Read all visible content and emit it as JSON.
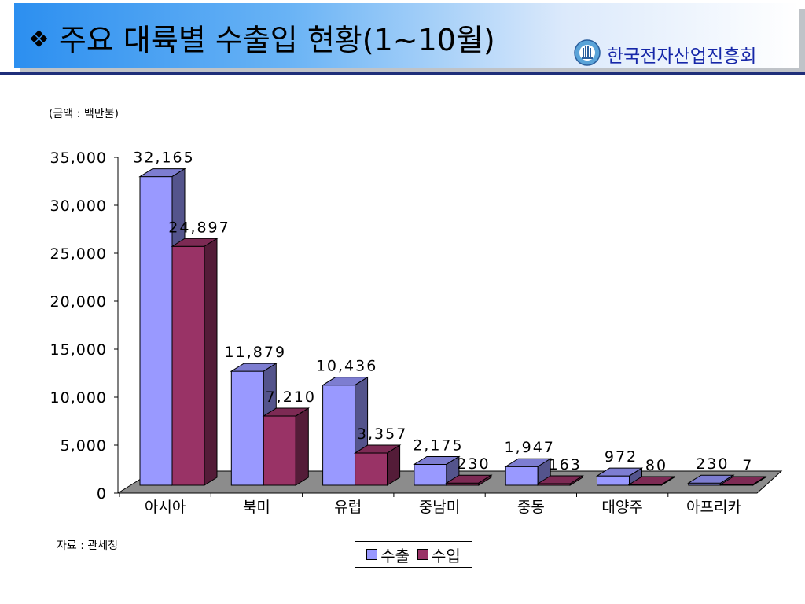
{
  "header": {
    "bullet": "❖",
    "title": "주요 대륙별 수출입 현황(1~10월)",
    "org_name": "한국전자산업진흥회"
  },
  "notes": {
    "unit": "(금액 : 백만불)",
    "source": "자료 : 관세청"
  },
  "colors": {
    "export": "#9999ff",
    "import": "#993366"
  },
  "chart_data": {
    "type": "bar",
    "style": "3d-clustered",
    "categories": [
      "아시아",
      "북미",
      "유럽",
      "중남미",
      "중동",
      "대양주",
      "아프리카"
    ],
    "series": [
      {
        "name": "수출",
        "values": [
          32165,
          11879,
          10436,
          2175,
          1947,
          972,
          230
        ]
      },
      {
        "name": "수입",
        "values": [
          24897,
          7210,
          3357,
          230,
          163,
          80,
          7
        ]
      }
    ],
    "data_labels": {
      "수출": [
        "32,165",
        "11,879",
        "10,436",
        "2,175",
        "1,947",
        "972",
        "230"
      ],
      "수입": [
        "24,897",
        "7,210",
        "3,357",
        "230",
        "163",
        "80",
        "7"
      ]
    },
    "yticks": [
      "0",
      "5,000",
      "10,000",
      "15,000",
      "20,000",
      "25,000",
      "30,000",
      "35,000"
    ],
    "ylim": [
      0,
      35000
    ],
    "grid": false,
    "legend_position": "bottom-center"
  }
}
